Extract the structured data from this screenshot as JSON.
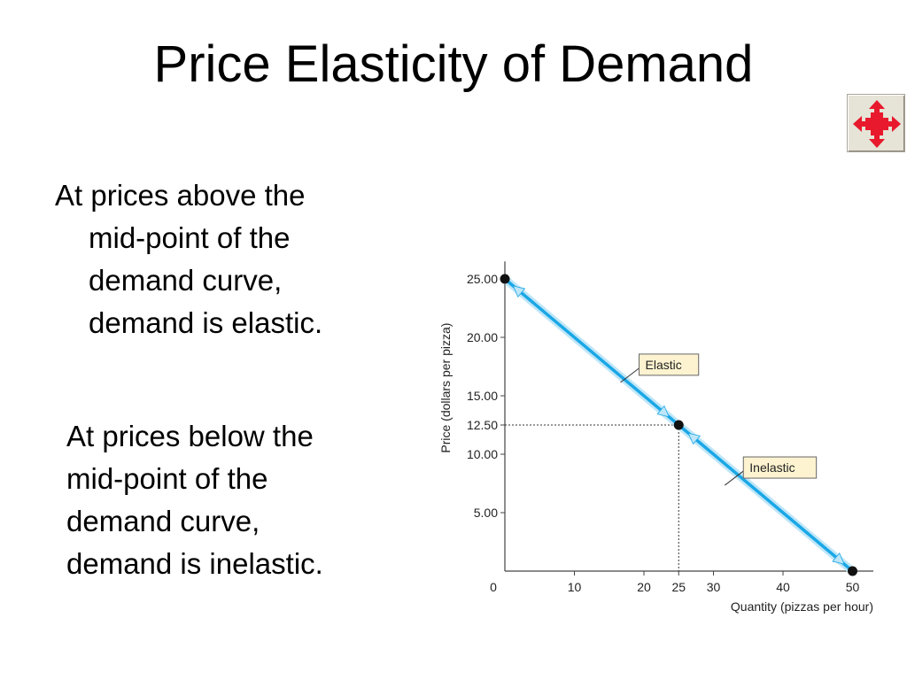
{
  "slide": {
    "title": "Price Elasticity of Demand",
    "nav_icon": "expand-arrows-icon",
    "paragraph1": [
      "At prices above the",
      "mid-point of the",
      "demand curve,",
      "demand is elastic."
    ],
    "paragraph2": [
      "At prices below the",
      "mid-point of the",
      "demand curve,",
      "demand is inelastic."
    ]
  },
  "colors": {
    "curve": "#1aa7e6",
    "curve_glow": "#bfe6f8",
    "label_box": "#fdf3d0",
    "nav_icon": "#e8192c"
  },
  "chart_data": {
    "type": "line",
    "xlabel": "Quantity (pizzas per hour)",
    "ylabel": "Price (dollars per pizza)",
    "xlim": [
      0,
      55
    ],
    "ylim": [
      0,
      26.5
    ],
    "x_ticks": [
      0,
      10,
      20,
      25,
      30,
      40,
      50
    ],
    "y_ticks": [
      5.0,
      10.0,
      12.5,
      15.0,
      20.0,
      25.0
    ],
    "y_tick_labels": [
      "5.00",
      "10.00",
      "12.50",
      "15.00",
      "20.00",
      "25.00"
    ],
    "series": [
      {
        "values": [
          {
            "x": 0,
            "y": 25
          },
          {
            "x": 50,
            "y": 0
          }
        ]
      }
    ],
    "points": [
      {
        "x": 0,
        "y": 25
      },
      {
        "x": 25,
        "y": 12.5
      },
      {
        "x": 50,
        "y": 0
      }
    ],
    "midpoint": {
      "x": 25,
      "y": 12.5
    },
    "annotations": [
      {
        "text": "Elastic",
        "x": 16.5,
        "y": 16.6
      },
      {
        "text": "Inelastic",
        "x": 31.5,
        "y": 7.8
      }
    ],
    "grid": false
  }
}
